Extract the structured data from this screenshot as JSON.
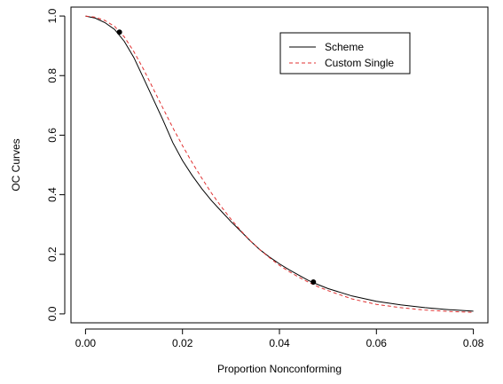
{
  "chart_data": {
    "type": "line",
    "title": "",
    "xlabel": "Proportion Nonconforming",
    "ylabel": "OC Curves",
    "xlim": [
      -0.003,
      0.083
    ],
    "ylim": [
      -0.03,
      1.03
    ],
    "x_ticks": [
      0.0,
      0.02,
      0.04,
      0.06,
      0.08
    ],
    "x_tick_labels": [
      "0.00",
      "0.02",
      "0.04",
      "0.06",
      "0.08"
    ],
    "y_ticks": [
      0.0,
      0.2,
      0.4,
      0.6,
      0.8,
      1.0
    ],
    "y_tick_labels": [
      "0.0",
      "0.2",
      "0.4",
      "0.6",
      "0.8",
      "1.0"
    ],
    "grid": false,
    "legend_position": "top-right",
    "series": [
      {
        "name": "Scheme",
        "color": "#000000",
        "dash": "solid",
        "points": [
          [
            0.0,
            1.0
          ],
          [
            0.002,
            0.993
          ],
          [
            0.004,
            0.978
          ],
          [
            0.006,
            0.955
          ],
          [
            0.008,
            0.915
          ],
          [
            0.01,
            0.86
          ],
          [
            0.012,
            0.79
          ],
          [
            0.014,
            0.72
          ],
          [
            0.016,
            0.65
          ],
          [
            0.018,
            0.575
          ],
          [
            0.02,
            0.515
          ],
          [
            0.022,
            0.465
          ],
          [
            0.024,
            0.42
          ],
          [
            0.026,
            0.38
          ],
          [
            0.028,
            0.345
          ],
          [
            0.03,
            0.31
          ],
          [
            0.032,
            0.278
          ],
          [
            0.034,
            0.245
          ],
          [
            0.036,
            0.215
          ],
          [
            0.038,
            0.19
          ],
          [
            0.04,
            0.168
          ],
          [
            0.042,
            0.148
          ],
          [
            0.044,
            0.13
          ],
          [
            0.046,
            0.112
          ],
          [
            0.048,
            0.098
          ],
          [
            0.05,
            0.085
          ],
          [
            0.055,
            0.06
          ],
          [
            0.06,
            0.042
          ],
          [
            0.065,
            0.03
          ],
          [
            0.07,
            0.021
          ],
          [
            0.075,
            0.014
          ],
          [
            0.08,
            0.009
          ]
        ]
      },
      {
        "name": "Custom Single",
        "color": "#e03030",
        "dash": "dashed",
        "points": [
          [
            0.0,
            1.0
          ],
          [
            0.002,
            0.996
          ],
          [
            0.004,
            0.985
          ],
          [
            0.006,
            0.965
          ],
          [
            0.008,
            0.93
          ],
          [
            0.01,
            0.88
          ],
          [
            0.012,
            0.82
          ],
          [
            0.014,
            0.755
          ],
          [
            0.016,
            0.69
          ],
          [
            0.018,
            0.625
          ],
          [
            0.02,
            0.565
          ],
          [
            0.022,
            0.508
          ],
          [
            0.024,
            0.455
          ],
          [
            0.026,
            0.405
          ],
          [
            0.028,
            0.36
          ],
          [
            0.03,
            0.318
          ],
          [
            0.032,
            0.28
          ],
          [
            0.034,
            0.245
          ],
          [
            0.036,
            0.215
          ],
          [
            0.038,
            0.188
          ],
          [
            0.04,
            0.163
          ],
          [
            0.042,
            0.142
          ],
          [
            0.044,
            0.123
          ],
          [
            0.046,
            0.106
          ],
          [
            0.048,
            0.091
          ],
          [
            0.05,
            0.078
          ],
          [
            0.055,
            0.05
          ],
          [
            0.06,
            0.032
          ],
          [
            0.065,
            0.021
          ],
          [
            0.07,
            0.013
          ],
          [
            0.075,
            0.008
          ],
          [
            0.08,
            0.005
          ]
        ]
      }
    ],
    "markers": [
      {
        "x": 0.007,
        "y": 0.946
      },
      {
        "x": 0.047,
        "y": 0.107
      }
    ]
  }
}
